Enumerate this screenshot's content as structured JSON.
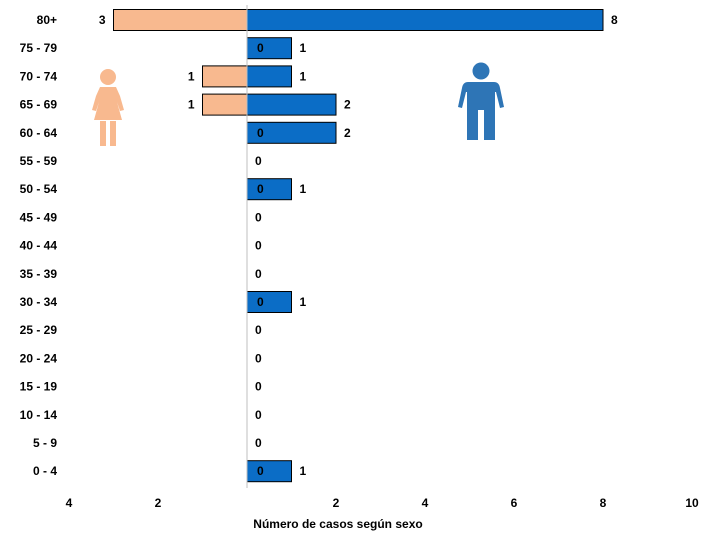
{
  "chart_data": {
    "type": "bar",
    "orientation": "horizontal",
    "chart_style": "population-pyramid",
    "categories": [
      "80+",
      "75 - 79",
      "70 - 74",
      "65 - 69",
      "60 - 64",
      "55 - 59",
      "50 - 54",
      "45 - 49",
      "40 - 44",
      "35 - 39",
      "30 - 34",
      "25 - 29",
      "20 - 24",
      "15 - 19",
      "10 - 14",
      "5 - 9",
      "0 - 4"
    ],
    "series": [
      {
        "key": "female",
        "side": "left",
        "color": "#F8B98F",
        "icon": "woman-icon",
        "values": [
          3,
          null,
          1,
          1,
          null,
          null,
          null,
          null,
          null,
          null,
          null,
          null,
          null,
          null,
          null,
          null,
          null
        ]
      },
      {
        "key": "male",
        "side": "right",
        "color": "#0B6DC6",
        "icon": "man-icon",
        "values": [
          8,
          1,
          1,
          2,
          2,
          0,
          1,
          0,
          0,
          0,
          1,
          0,
          0,
          0,
          0,
          0,
          1
        ],
        "inner_labels": [
          null,
          0,
          null,
          null,
          0,
          null,
          0,
          null,
          null,
          null,
          0,
          null,
          null,
          null,
          null,
          null,
          0
        ]
      }
    ],
    "x_ticks_left": [
      "4",
      "2"
    ],
    "x_ticks_right": [
      "2",
      "4",
      "6",
      "8",
      "10"
    ],
    "xlim": [
      -4,
      10
    ],
    "xlabel": "Número de casos según sexo",
    "legend": "none",
    "grid": false
  }
}
